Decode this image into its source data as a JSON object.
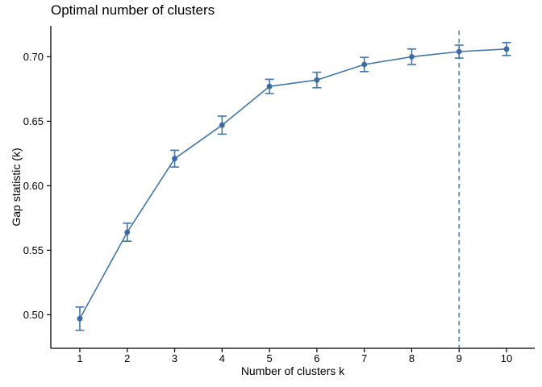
{
  "chart_data": {
    "type": "line",
    "title": "Optimal number of clusters",
    "xlabel": "Number of clusters k",
    "ylabel": "Gap statistic (k)",
    "x": [
      1,
      2,
      3,
      4,
      5,
      6,
      7,
      8,
      9,
      10
    ],
    "series": [
      {
        "name": "Gap statistic",
        "values": [
          0.497,
          0.564,
          0.621,
          0.647,
          0.677,
          0.682,
          0.694,
          0.7,
          0.704,
          0.706
        ],
        "error": [
          0.009,
          0.007,
          0.0065,
          0.007,
          0.0055,
          0.006,
          0.0055,
          0.006,
          0.005,
          0.005
        ]
      }
    ],
    "x_ticks": [
      1,
      2,
      3,
      4,
      5,
      6,
      7,
      8,
      9,
      10
    ],
    "y_ticks": [
      0.5,
      0.55,
      0.6,
      0.65,
      0.7
    ],
    "xlim": [
      0.388,
      10.595
    ],
    "ylim": [
      0.474,
      0.724
    ],
    "grid": false,
    "legend": false,
    "dashed_vline_x": 9,
    "optimal_k": 9,
    "colors": {
      "line": "#4176ad",
      "point": "#3a6ba6",
      "dashed_line": "#4f86bd",
      "axis": "#000000",
      "text": "#000000"
    }
  }
}
